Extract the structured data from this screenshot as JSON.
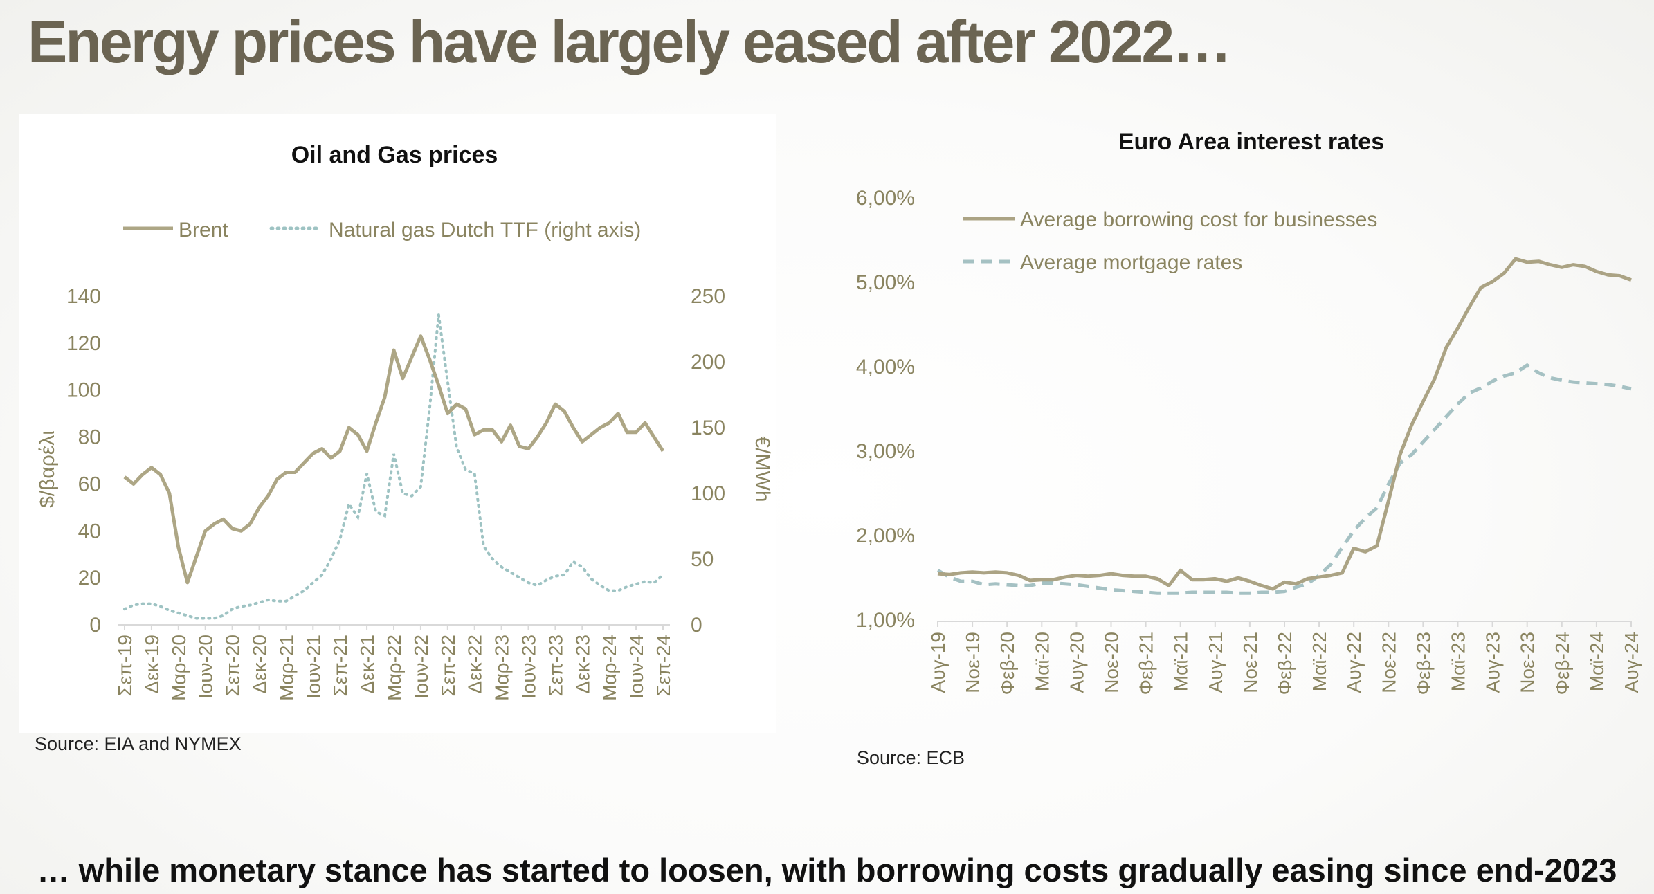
{
  "slide": {
    "title": "Energy prices have largely eased after 2022…",
    "subtitle": "… while monetary stance has started to loosen, with borrowing costs gradually easing since end-2023"
  },
  "colors": {
    "title": "#6b6452",
    "axis_text": "#8a8460",
    "brent": "#ada685",
    "gas": "#9ec3c3",
    "business": "#aba384",
    "mortgage": "#a5c1c3"
  },
  "chart_data": [
    {
      "type": "line",
      "title": "Oil and Gas prices",
      "source": "Source: EIA and NYMEX",
      "ylabel": "$/βαρέλι",
      "y2label": "€/MWh",
      "ylim": [
        0,
        140
      ],
      "y2lim": [
        0,
        250
      ],
      "yticks": [
        "0",
        "20",
        "40",
        "60",
        "80",
        "100",
        "120",
        "140"
      ],
      "y2ticks": [
        "0",
        "50",
        "100",
        "150",
        "200",
        "250"
      ],
      "legend_position": "top",
      "x_tick_labels": [
        "Σεπ-19",
        "Δεκ-19",
        "Μαρ-20",
        "Ιουν-20",
        "Σεπ-20",
        "Δεκ-20",
        "Μαρ-21",
        "Ιουν-21",
        "Σεπ-21",
        "Δεκ-21",
        "Μαρ-22",
        "Ιουν-22",
        "Σεπ-22",
        "Δεκ-22",
        "Μαρ-23",
        "Ιουν-23",
        "Σεπ-23",
        "Δεκ-23",
        "Μαρ-24",
        "Ιουν-24",
        "Σεπ-24"
      ],
      "series": [
        {
          "name": "Brent",
          "axis": "left",
          "style": "solid",
          "values": [
            63,
            60,
            64,
            67,
            64,
            56,
            33,
            18,
            29,
            40,
            43,
            45,
            41,
            40,
            43,
            50,
            55,
            62,
            65,
            65,
            69,
            73,
            75,
            71,
            74,
            84,
            81,
            74,
            86,
            97,
            117,
            105,
            114,
            123,
            113,
            102,
            90,
            94,
            92,
            81,
            83,
            83,
            78,
            85,
            76,
            75,
            80,
            86,
            94,
            91,
            84,
            78,
            81,
            84,
            86,
            90,
            82,
            82,
            86,
            80,
            74
          ]
        },
        {
          "name": "Natural gas Dutch TTF (right axis)",
          "axis": "right",
          "style": "dotted",
          "values": [
            12,
            15,
            16,
            16,
            14,
            11,
            9,
            7,
            5,
            5,
            5,
            7,
            12,
            14,
            15,
            17,
            19,
            18,
            18,
            22,
            26,
            32,
            38,
            50,
            65,
            92,
            82,
            115,
            86,
            83,
            130,
            100,
            98,
            105,
            165,
            236,
            185,
            135,
            118,
            115,
            60,
            50,
            44,
            40,
            36,
            32,
            30,
            34,
            37,
            38,
            48,
            44,
            35,
            30,
            26,
            26,
            29,
            31,
            33,
            32,
            38
          ]
        }
      ]
    },
    {
      "type": "line",
      "title": "Euro Area interest rates",
      "source": "Source: ECB",
      "ylim": [
        1.0,
        6.0
      ],
      "yticks": [
        "1,00%",
        "2,00%",
        "3,00%",
        "4,00%",
        "5,00%",
        "6,00%"
      ],
      "legend_position": "top-left",
      "x_tick_labels": [
        "Αυγ-19",
        "Νοε-19",
        "Φεβ-20",
        "Μαϊ-20",
        "Αυγ-20",
        "Νοε-20",
        "Φεβ-21",
        "Μαϊ-21",
        "Αυγ-21",
        "Νοε-21",
        "Φεβ-22",
        "Μαϊ-22",
        "Αυγ-22",
        "Νοε-22",
        "Φεβ-23",
        "Μαϊ-23",
        "Αυγ-23",
        "Νοε-23",
        "Φεβ-24",
        "Μαϊ-24",
        "Αυγ-24"
      ],
      "series": [
        {
          "name": "Average borrowing cost for businesses",
          "style": "solid",
          "values": [
            1.54,
            1.53,
            1.55,
            1.56,
            1.55,
            1.56,
            1.55,
            1.52,
            1.46,
            1.47,
            1.47,
            1.5,
            1.52,
            1.51,
            1.52,
            1.54,
            1.52,
            1.51,
            1.51,
            1.48,
            1.4,
            1.58,
            1.47,
            1.47,
            1.48,
            1.45,
            1.49,
            1.45,
            1.4,
            1.36,
            1.44,
            1.42,
            1.48,
            1.5,
            1.52,
            1.55,
            1.84,
            1.8,
            1.87,
            2.4,
            2.95,
            3.3,
            3.58,
            3.85,
            4.22,
            4.45,
            4.7,
            4.93,
            5.0,
            5.1,
            5.27,
            5.23,
            5.24,
            5.2,
            5.17,
            5.2,
            5.18,
            5.12,
            5.08,
            5.07,
            5.02
          ]
        },
        {
          "name": "Average mortgage rates",
          "style": "dashed",
          "values": [
            1.58,
            1.5,
            1.45,
            1.45,
            1.41,
            1.42,
            1.41,
            1.4,
            1.4,
            1.43,
            1.43,
            1.42,
            1.41,
            1.39,
            1.37,
            1.35,
            1.34,
            1.33,
            1.32,
            1.31,
            1.31,
            1.31,
            1.32,
            1.32,
            1.32,
            1.32,
            1.31,
            1.31,
            1.32,
            1.32,
            1.33,
            1.38,
            1.42,
            1.52,
            1.65,
            1.85,
            2.05,
            2.2,
            2.32,
            2.6,
            2.85,
            2.95,
            3.1,
            3.25,
            3.4,
            3.55,
            3.68,
            3.74,
            3.82,
            3.88,
            3.92,
            4.01,
            3.92,
            3.86,
            3.83,
            3.81,
            3.8,
            3.79,
            3.78,
            3.76,
            3.73
          ]
        }
      ]
    }
  ]
}
